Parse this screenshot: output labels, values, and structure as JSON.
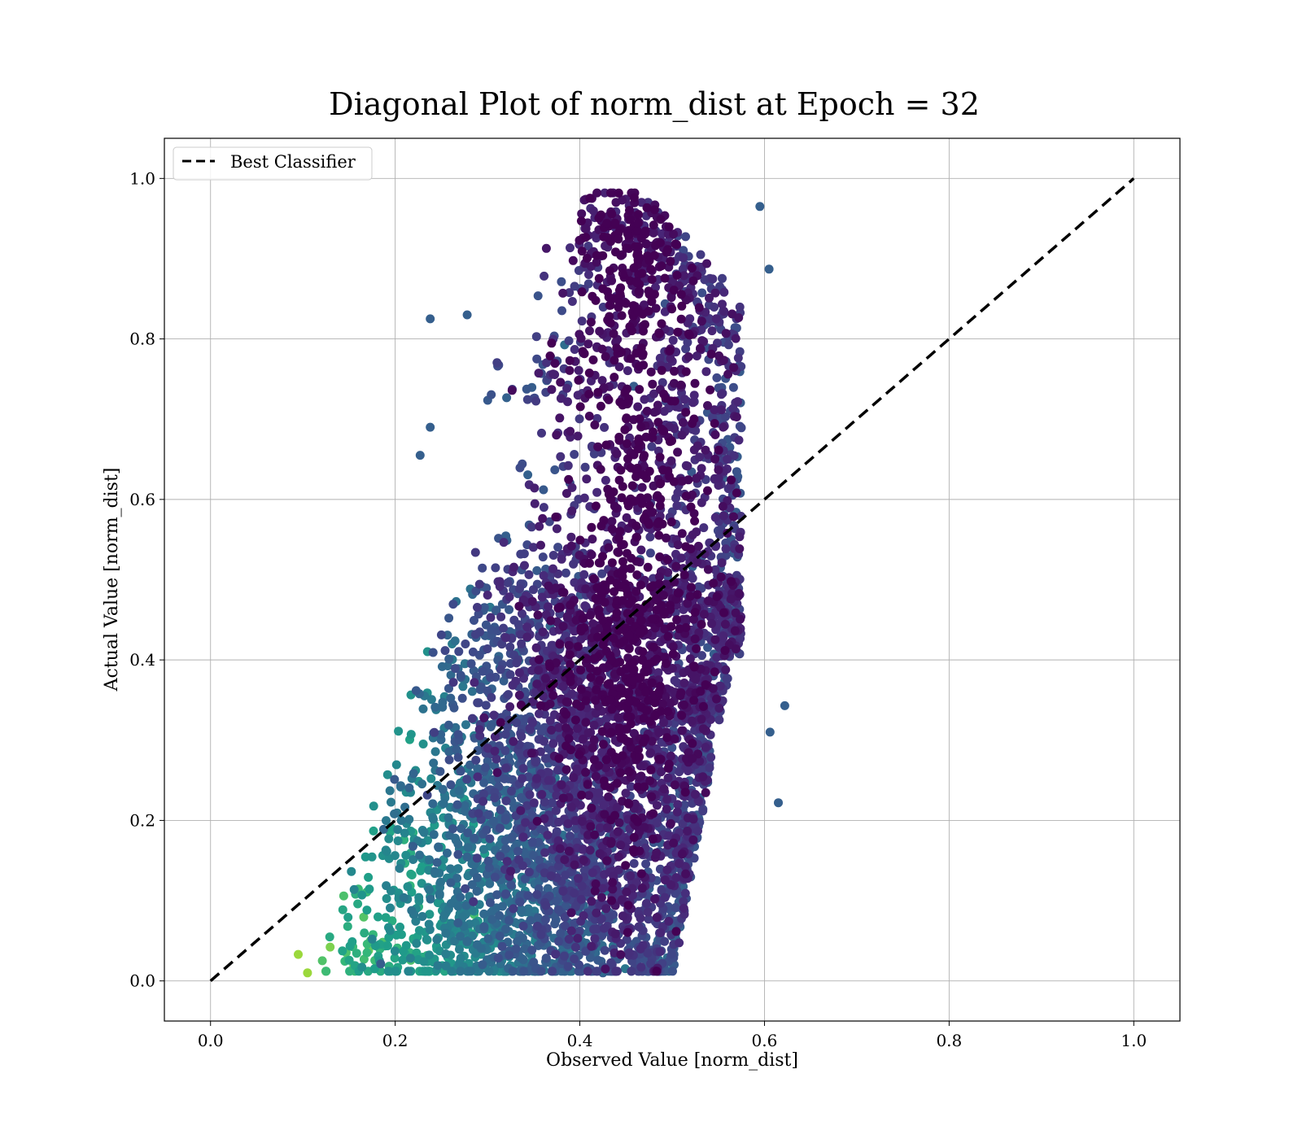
{
  "chart_data": {
    "type": "scatter",
    "title": "Diagonal Plot of norm_dist at Epoch = 32",
    "xlabel": "Observed Value [norm_dist]",
    "ylabel": "Actual Value [norm_dist]",
    "xlim": [
      -0.05,
      1.05
    ],
    "ylim": [
      -0.05,
      1.05
    ],
    "xticks": [
      "0.0",
      "0.2",
      "0.4",
      "0.6",
      "0.8",
      "1.0"
    ],
    "yticks": [
      "0.0",
      "0.2",
      "0.4",
      "0.6",
      "0.8",
      "1.0"
    ],
    "xtick_values": [
      0.0,
      0.2,
      0.4,
      0.6,
      0.8,
      1.0
    ],
    "ytick_values": [
      0.0,
      0.2,
      0.4,
      0.6,
      0.8,
      1.0
    ],
    "grid": true,
    "colormap": "viridis",
    "legend": {
      "position": "top-left",
      "entries": [
        "Best Classifier"
      ]
    },
    "reference_line": {
      "name": "Best Classifier",
      "style": "dashed",
      "color": "#000000",
      "x": [
        0.0,
        1.0
      ],
      "y": [
        0.0,
        1.0
      ]
    },
    "scatter_cloud": {
      "x_range": [
        0.09,
        0.625
      ],
      "y_range": [
        0.01,
        0.985
      ],
      "core_x_range_at_top": [
        0.38,
        0.58
      ],
      "core_x_range_at_bottom": [
        0.12,
        0.5
      ],
      "color_trend": "yellow-green at low x and low y, dark purple at x 0.4-0.5"
    },
    "outliers": [
      {
        "x": 0.105,
        "y": 0.01
      },
      {
        "x": 0.095,
        "y": 0.033
      },
      {
        "x": 0.318,
        "y": 0.013
      },
      {
        "x": 0.238,
        "y": 0.825
      },
      {
        "x": 0.278,
        "y": 0.83
      },
      {
        "x": 0.227,
        "y": 0.655
      },
      {
        "x": 0.238,
        "y": 0.69
      },
      {
        "x": 0.595,
        "y": 0.965
      },
      {
        "x": 0.605,
        "y": 0.887
      },
      {
        "x": 0.622,
        "y": 0.343
      },
      {
        "x": 0.615,
        "y": 0.222
      },
      {
        "x": 0.606,
        "y": 0.31
      },
      {
        "x": 0.425,
        "y": 0.01
      }
    ]
  }
}
